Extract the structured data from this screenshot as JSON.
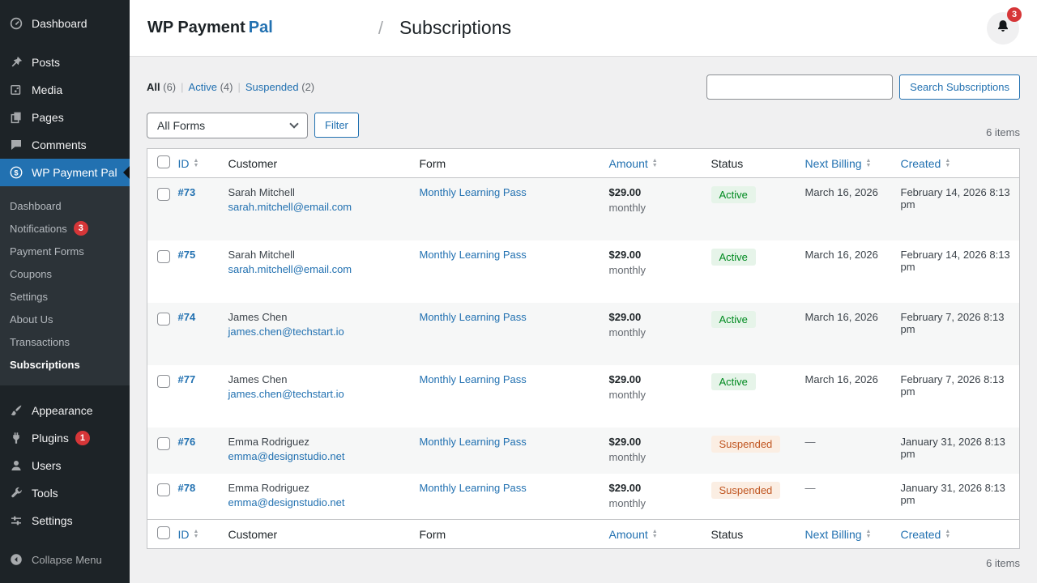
{
  "colors": {
    "accent": "#2271b1",
    "sidebar_bg": "#1d2327",
    "submenu_bg": "#2c3338",
    "badge_red": "#d63638",
    "active_text": "#008a20",
    "active_bg": "#e6f4e9",
    "suspended_text": "#c05621",
    "suspended_bg": "#fbeee3"
  },
  "sidebar": {
    "top_items": [
      {
        "label": "Dashboard",
        "icon": "dashboard-icon"
      },
      {
        "label": "Posts",
        "icon": "pin-icon"
      },
      {
        "label": "Media",
        "icon": "media-icon"
      },
      {
        "label": "Pages",
        "icon": "pages-icon"
      },
      {
        "label": "Comments",
        "icon": "comments-icon"
      },
      {
        "label": "WP Payment Pal",
        "icon": "dollar-icon",
        "active": true
      }
    ],
    "submenu_items": [
      {
        "label": "Dashboard"
      },
      {
        "label": "Notifications",
        "badge": "3"
      },
      {
        "label": "Payment Forms"
      },
      {
        "label": "Coupons"
      },
      {
        "label": "Settings"
      },
      {
        "label": "About Us"
      },
      {
        "label": "Transactions"
      },
      {
        "label": "Subscriptions",
        "current": true
      }
    ],
    "bottom_items": [
      {
        "label": "Appearance",
        "icon": "appearance-icon"
      },
      {
        "label": "Plugins",
        "icon": "plugins-icon",
        "badge": "1"
      },
      {
        "label": "Users",
        "icon": "users-icon"
      },
      {
        "label": "Tools",
        "icon": "tools-icon"
      },
      {
        "label": "Settings",
        "icon": "settings-icon"
      }
    ],
    "collapse_label": "Collapse Menu"
  },
  "header": {
    "brand_primary": "WP Payment",
    "brand_accent": "Pal",
    "separator": "/",
    "page_title": "Subscriptions",
    "notification_count": "3"
  },
  "views": [
    {
      "label": "All",
      "count": "(6)",
      "current": true
    },
    {
      "label": "Active",
      "count": "(4)"
    },
    {
      "label": "Suspended",
      "count": "(2)"
    }
  ],
  "toolbar": {
    "search_value": "",
    "search_button": "Search Subscriptions",
    "forms_dropdown": "All Forms",
    "filter_button": "Filter",
    "items_count": "6 items",
    "items_count_bottom": "6 items"
  },
  "table": {
    "columns": [
      {
        "key": "id",
        "label": "ID",
        "sortable": true
      },
      {
        "key": "customer",
        "label": "Customer",
        "sortable": false
      },
      {
        "key": "form",
        "label": "Form",
        "sortable": false
      },
      {
        "key": "amount",
        "label": "Amount",
        "sortable": true
      },
      {
        "key": "status",
        "label": "Status",
        "sortable": false
      },
      {
        "key": "next_billing",
        "label": "Next Billing",
        "sortable": true
      },
      {
        "key": "created",
        "label": "Created",
        "sortable": true
      }
    ],
    "rows": [
      {
        "id": "#73",
        "customer": "Sarah Mitchell",
        "email": "sarah.mitchell@email.com",
        "form": "Monthly Learning Pass",
        "amount": "$29.00",
        "interval": "monthly",
        "status": "Active",
        "status_type": "active",
        "next_billing": "March 16, 2026",
        "created": "February 14, 2026 8:13 pm"
      },
      {
        "id": "#75",
        "customer": "Sarah Mitchell",
        "email": "sarah.mitchell@email.com",
        "form": "Monthly Learning Pass",
        "amount": "$29.00",
        "interval": "monthly",
        "status": "Active",
        "status_type": "active",
        "next_billing": "March 16, 2026",
        "created": "February 14, 2026 8:13 pm"
      },
      {
        "id": "#74",
        "customer": "James Chen",
        "email": "james.chen@techstart.io",
        "form": "Monthly Learning Pass",
        "amount": "$29.00",
        "interval": "monthly",
        "status": "Active",
        "status_type": "active",
        "next_billing": "March 16, 2026",
        "created": "February 7, 2026 8:13 pm"
      },
      {
        "id": "#77",
        "customer": "James Chen",
        "email": "james.chen@techstart.io",
        "form": "Monthly Learning Pass",
        "amount": "$29.00",
        "interval": "monthly",
        "status": "Active",
        "status_type": "active",
        "next_billing": "March 16, 2026",
        "created": "February 7, 2026 8:13 pm"
      },
      {
        "id": "#76",
        "customer": "Emma Rodriguez",
        "email": "emma@designstudio.net",
        "form": "Monthly Learning Pass",
        "amount": "$29.00",
        "interval": "monthly",
        "status": "Suspended",
        "status_type": "suspended",
        "next_billing": "—",
        "created": "January 31, 2026 8:13 pm"
      },
      {
        "id": "#78",
        "customer": "Emma Rodriguez",
        "email": "emma@designstudio.net",
        "form": "Monthly Learning Pass",
        "amount": "$29.00",
        "interval": "monthly",
        "status": "Suspended",
        "status_type": "suspended",
        "next_billing": "—",
        "created": "January 31, 2026 8:13 pm"
      }
    ]
  }
}
